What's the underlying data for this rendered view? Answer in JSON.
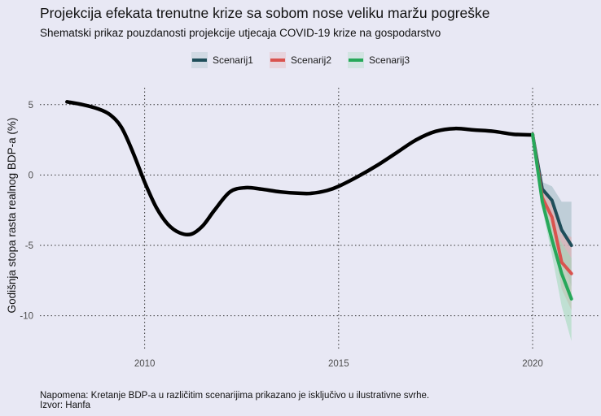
{
  "title": "Projekcija efekata trenutne krize sa sobom nose veliku maržu pogreške",
  "subtitle": "Shematski prikaz pouzdanosti projekcije utjecaja COVID-19 krize na gospodarstvo",
  "footnote": {
    "line1": "Napomena: Kretanje BDP-a u različitim scenarijima prikazano je isključivo u ilustrativne svrhe.",
    "line2": "Izvor: Hanfa"
  },
  "colors": {
    "background": "#e8e8f4",
    "history": "#000000",
    "grid": "#333333"
  },
  "legend": {
    "items": [
      {
        "label": "Scenarij1",
        "color": "#1f4e5a",
        "band": "#9db8c1"
      },
      {
        "label": "Scenarij2",
        "color": "#d9534f",
        "band": "#e8a7a9"
      },
      {
        "label": "Scenarij3",
        "color": "#27a85a",
        "band": "#9fd9b8"
      }
    ]
  },
  "chart_data": {
    "type": "line",
    "title": "Projekcija efekata trenutne krize sa sobom nose veliku maržu pogreške",
    "subtitle": "Shematski prikaz pouzdanosti projekcije utjecaja COVID-19 krize na gospodarstvo",
    "xlabel": "",
    "ylabel": "Godišnja stopa rasta realnog BDP-a (%)",
    "x_ticks": [
      2010,
      2015,
      2020
    ],
    "y_ticks": [
      5,
      0,
      -5,
      -10
    ],
    "xlim": [
      2007.3,
      2021.7
    ],
    "ylim": [
      -12.5,
      6.2
    ],
    "grid": true,
    "legend_position": "top",
    "history": {
      "x": [
        2008.0,
        2008.4,
        2008.8,
        2009.1,
        2009.4,
        2009.7,
        2010.0,
        2010.3,
        2010.6,
        2010.9,
        2011.2,
        2011.5,
        2011.8,
        2012.2,
        2012.6,
        2013.0,
        2013.5,
        2014.0,
        2014.3,
        2014.7,
        2015.0,
        2015.5,
        2016.0,
        2016.5,
        2017.0,
        2017.5,
        2018.0,
        2018.5,
        2019.0,
        2019.5,
        2020.0
      ],
      "y": [
        5.2,
        5.0,
        4.7,
        4.3,
        3.4,
        1.6,
        -0.5,
        -2.3,
        -3.5,
        -4.1,
        -4.2,
        -3.6,
        -2.5,
        -1.2,
        -0.9,
        -1.0,
        -1.2,
        -1.3,
        -1.3,
        -1.1,
        -0.8,
        -0.1,
        0.7,
        1.6,
        2.5,
        3.1,
        3.3,
        3.2,
        3.1,
        2.9,
        2.85
      ]
    },
    "series": [
      {
        "name": "Scenarij1",
        "x": [
          2020.0,
          2020.25,
          2020.5,
          2020.75,
          2021.0
        ],
        "y": [
          2.9,
          -1.0,
          -1.8,
          -3.9,
          -5.0
        ],
        "upper": [
          2.9,
          -0.5,
          -0.8,
          -1.9,
          -1.9
        ],
        "lower": [
          2.9,
          -1.5,
          -2.8,
          -5.9,
          -7.9
        ]
      },
      {
        "name": "Scenarij2",
        "x": [
          2020.0,
          2020.25,
          2020.5,
          2020.75,
          2021.0
        ],
        "y": [
          2.9,
          -1.6,
          -3.0,
          -6.2,
          -7.0
        ],
        "upper": [
          2.9,
          -1.0,
          -2.0,
          -4.2,
          -4.4
        ],
        "lower": [
          2.9,
          -2.1,
          -4.0,
          -8.1,
          -9.6
        ]
      },
      {
        "name": "Scenarij3",
        "x": [
          2020.0,
          2020.25,
          2020.5,
          2020.75,
          2021.0
        ],
        "y": [
          2.9,
          -1.9,
          -4.6,
          -7.0,
          -8.8
        ],
        "upper": [
          2.9,
          -1.4,
          -3.5,
          -4.8,
          -5.9
        ],
        "lower": [
          2.9,
          -2.4,
          -5.7,
          -9.3,
          -11.8
        ]
      }
    ]
  }
}
